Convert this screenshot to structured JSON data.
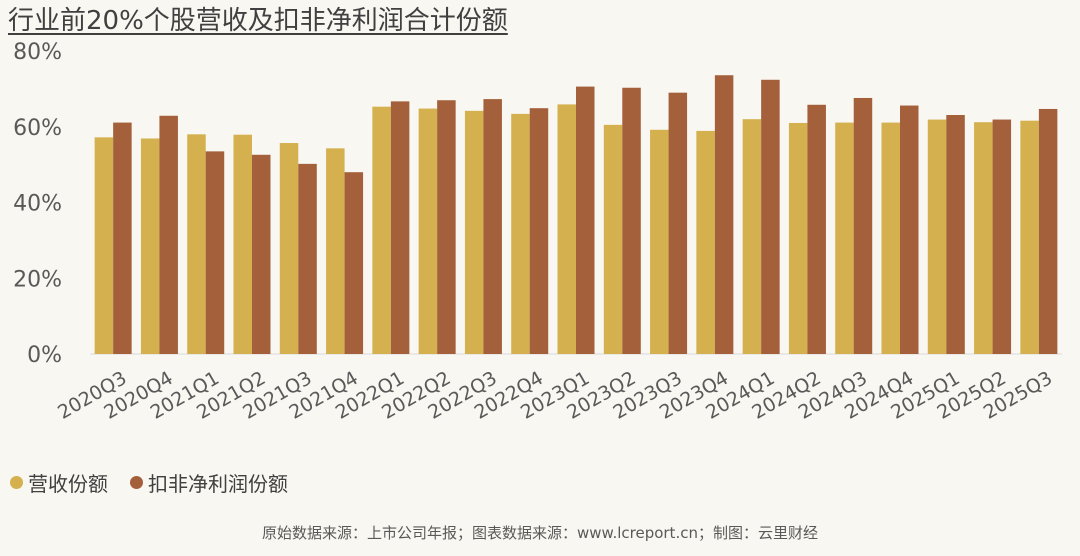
{
  "chart_data": {
    "type": "bar",
    "title": "行业前20%个股营收及扣非净利润合计份额",
    "categories": [
      "2020Q3",
      "2020Q4",
      "2021Q1",
      "2021Q2",
      "2021Q3",
      "2021Q4",
      "2022Q1",
      "2022Q2",
      "2022Q3",
      "2022Q4",
      "2023Q1",
      "2023Q2",
      "2023Q3",
      "2023Q4",
      "2024Q1",
      "2024Q2",
      "2024Q3",
      "2024Q4",
      "2025Q1",
      "2025Q2",
      "2025Q3"
    ],
    "series": [
      {
        "name": "营收份额",
        "color": "#d4b04e",
        "values": [
          57.2,
          56.9,
          58.0,
          57.9,
          55.7,
          54.3,
          65.3,
          64.8,
          64.2,
          63.4,
          65.9,
          60.5,
          59.2,
          58.9,
          62.0,
          61.0,
          61.1,
          61.1,
          61.9,
          61.2,
          61.6
        ]
      },
      {
        "name": "扣非净利润份额",
        "color": "#a4603a",
        "values": [
          61.1,
          62.9,
          53.5,
          52.6,
          50.2,
          48.0,
          66.7,
          67.0,
          67.3,
          64.9,
          70.6,
          70.3,
          69.0,
          73.6,
          72.4,
          65.8,
          67.6,
          65.6,
          63.1,
          61.9,
          64.7
        ]
      }
    ],
    "yticks": [
      "0%",
      "20%",
      "40%",
      "60%",
      "80%"
    ],
    "ylim": [
      0,
      80
    ],
    "legend_position": "bottom-left",
    "grid": false
  },
  "source_note": "原始数据来源：上市公司年报；图表数据来源：www.lcreport.cn；制图：云里财经"
}
